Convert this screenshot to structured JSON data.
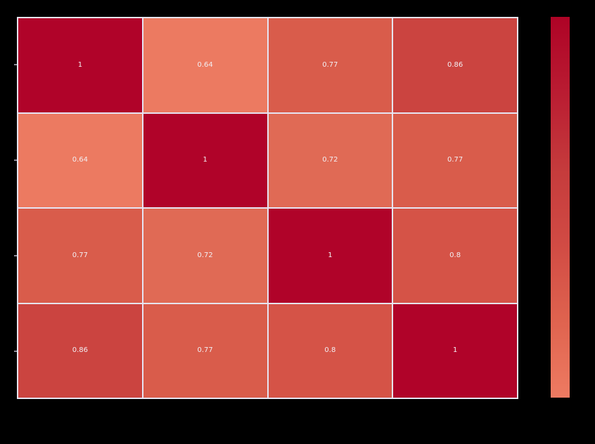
{
  "figure": {
    "background_color": "#000000",
    "title": "",
    "x_tick_labels_visible": false,
    "y_tick_labels_visible": false
  },
  "chart_data": {
    "type": "heatmap",
    "title": "",
    "xlabel": "",
    "ylabel": "",
    "rows": 4,
    "cols": 4,
    "matrix": [
      [
        1,
        0.64,
        0.77,
        0.86
      ],
      [
        0.64,
        1,
        0.72,
        0.77
      ],
      [
        0.77,
        0.72,
        1,
        0.8
      ],
      [
        0.86,
        0.77,
        0.8,
        1
      ]
    ],
    "cell_labels": [
      [
        "1",
        "0.64",
        "0.77",
        "0.86"
      ],
      [
        "0.64",
        "1",
        "0.72",
        "0.77"
      ],
      [
        "0.77",
        "0.72",
        "1",
        "0.8"
      ],
      [
        "0.86",
        "0.77",
        "0.8",
        "1"
      ]
    ],
    "vmin": 0.64,
    "vmax": 1,
    "value_colors": {
      "1": "#B00329",
      "0.86": "#CB4440",
      "0.8": "#D55347",
      "0.77": "#D95C4B",
      "0.72": "#E06A55",
      "0.64": "#EC7A61"
    },
    "annotation_text_color": "#F2EEF2",
    "grid_line_color": "#E6E4F2",
    "colorbar": {
      "position": "right",
      "orientation": "vertical",
      "gradient_stops_top_to_bottom": [
        "#AE0326",
        "#BA1C32",
        "#C53B3C",
        "#D14B44",
        "#DF634F",
        "#EE7B62"
      ]
    },
    "y_axis_ticks": {
      "count": 4,
      "color": "#8E8C9A"
    }
  }
}
